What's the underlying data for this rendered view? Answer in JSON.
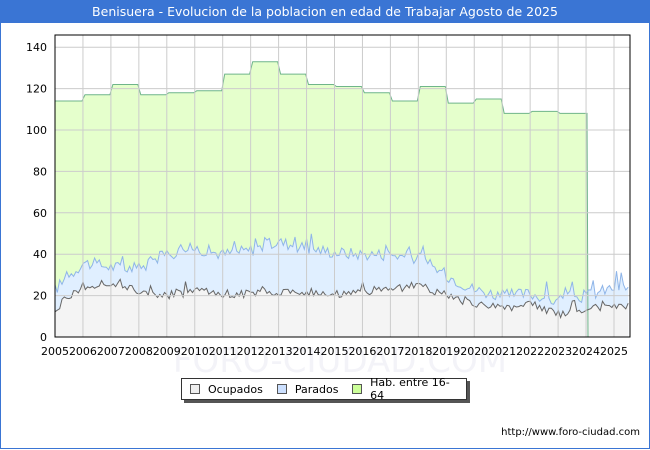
{
  "title": "Benisuera - Evolucion de la poblacion en edad de Trabajar Agosto de 2025",
  "watermark": "FORO-CIUDAD.COM",
  "source_url": "http://www.foro-ciudad.com",
  "legend": [
    {
      "label": "Ocupados",
      "color": "#eeeeee"
    },
    {
      "label": "Parados",
      "color": "#cce0ff"
    },
    {
      "label": "Hab. entre 16-64",
      "color": "#ccff99"
    }
  ],
  "colors": {
    "title_bg": "#3a75d4",
    "hab_fill": "#e5ffcc",
    "hab_line": "#6fb58a",
    "parados_fill": "#e0efff",
    "parados_line": "#8fb5e8",
    "ocupados_fill": "#f4f4f4",
    "ocupados_line": "#666666",
    "grid": "#cccccc"
  },
  "chart_data": {
    "type": "area",
    "title": "Benisuera - Evolucion de la poblacion en edad de Trabajar Agosto de 2025",
    "xlabel": "",
    "ylabel": "",
    "ylim": [
      0,
      145
    ],
    "yticks": [
      0,
      20,
      40,
      60,
      80,
      100,
      120,
      140
    ],
    "x": [
      "2005",
      "2006",
      "2007",
      "2008",
      "2009",
      "2010",
      "2011",
      "2012",
      "2013",
      "2014",
      "2015",
      "2016",
      "2017",
      "2018",
      "2019",
      "2020",
      "2021",
      "2022",
      "2023",
      "2024",
      "2025"
    ],
    "grid": true,
    "legend_position": "bottom",
    "series": [
      {
        "name": "Hab. entre 16-64",
        "values": [
          114,
          117,
          122,
          117,
          118,
          119,
          127,
          133,
          127,
          122,
          121,
          118,
          114,
          121,
          113,
          115,
          108,
          109,
          108,
          null,
          null
        ]
      },
      {
        "name": "Parados",
        "values": [
          23,
          36,
          34,
          33,
          40,
          43,
          40,
          42,
          46,
          43,
          41,
          40,
          40,
          38,
          30,
          23,
          20,
          21,
          17,
          20,
          24
        ]
      },
      {
        "name": "Ocupados",
        "values": [
          14,
          24,
          26,
          22,
          20,
          22,
          21,
          21,
          22,
          22,
          21,
          21,
          23,
          25,
          20,
          15,
          14,
          16,
          11,
          13,
          15
        ]
      }
    ]
  }
}
